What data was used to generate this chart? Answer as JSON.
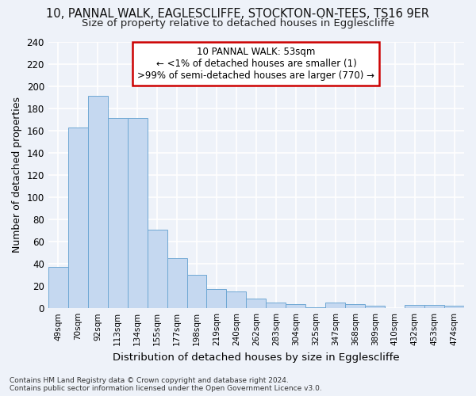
{
  "title1": "10, PANNAL WALK, EAGLESCLIFFE, STOCKTON-ON-TEES, TS16 9ER",
  "title2": "Size of property relative to detached houses in Egglescliffe",
  "xlabel": "Distribution of detached houses by size in Egglescliffe",
  "ylabel": "Number of detached properties",
  "categories": [
    "49sqm",
    "70sqm",
    "92sqm",
    "113sqm",
    "134sqm",
    "155sqm",
    "177sqm",
    "198sqm",
    "219sqm",
    "240sqm",
    "262sqm",
    "283sqm",
    "304sqm",
    "325sqm",
    "347sqm",
    "368sqm",
    "389sqm",
    "410sqm",
    "432sqm",
    "453sqm",
    "474sqm"
  ],
  "values": [
    37,
    163,
    191,
    171,
    171,
    71,
    45,
    30,
    17,
    15,
    9,
    5,
    4,
    1,
    5,
    4,
    2,
    0,
    3,
    3,
    2
  ],
  "bar_color": "#c5d8f0",
  "bar_edge_color": "#6fa8d4",
  "annotation_box_color": "#ffffff",
  "annotation_border_color": "#cc0000",
  "annotation_text_line1": "10 PANNAL WALK: 53sqm",
  "annotation_text_line2": "← <1% of detached houses are smaller (1)",
  "annotation_text_line3": ">99% of semi-detached houses are larger (770) →",
  "ylim": [
    0,
    240
  ],
  "yticks": [
    0,
    20,
    40,
    60,
    80,
    100,
    120,
    140,
    160,
    180,
    200,
    220,
    240
  ],
  "footer_line1": "Contains HM Land Registry data © Crown copyright and database right 2024.",
  "footer_line2": "Contains public sector information licensed under the Open Government Licence v3.0.",
  "background_color": "#eef2f9",
  "grid_color": "#ffffff",
  "title1_fontsize": 10.5,
  "title2_fontsize": 9.5
}
